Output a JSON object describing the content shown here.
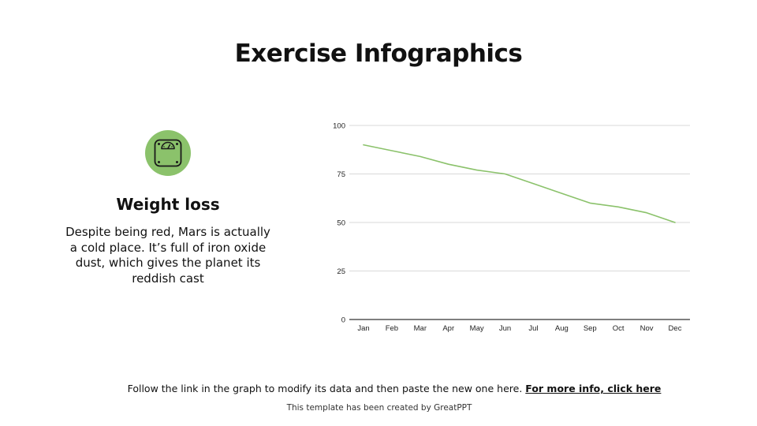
{
  "slide": {
    "title": "Exercise Infographics"
  },
  "feature": {
    "icon": "weight-scale-icon",
    "icon_bg_color": "#8BC26B",
    "title": "Weight loss",
    "description": "Despite being red, Mars is actually a cold place. It’s full of iron oxide dust, which gives the planet its reddish cast"
  },
  "chart_data": {
    "type": "line",
    "categories": [
      "Jan",
      "Feb",
      "Mar",
      "Apr",
      "May",
      "Jun",
      "Jul",
      "Aug",
      "Sep",
      "Oct",
      "Nov",
      "Dec"
    ],
    "series": [
      {
        "values": [
          90,
          87,
          84,
          80,
          77,
          75,
          70,
          65,
          60,
          58,
          55,
          50
        ],
        "color": "#8BC26B"
      }
    ],
    "ylim": [
      0,
      100
    ],
    "yticks": [
      0,
      25,
      50,
      75,
      100
    ],
    "grid": true,
    "legend": "none",
    "title": "",
    "xlabel": "",
    "ylabel": ""
  },
  "footer": {
    "text": "Follow the link in the graph to modify its data and then paste the new one here.",
    "link_label": "For more info, click here",
    "credit": "This template has been created by GreatPPT"
  }
}
